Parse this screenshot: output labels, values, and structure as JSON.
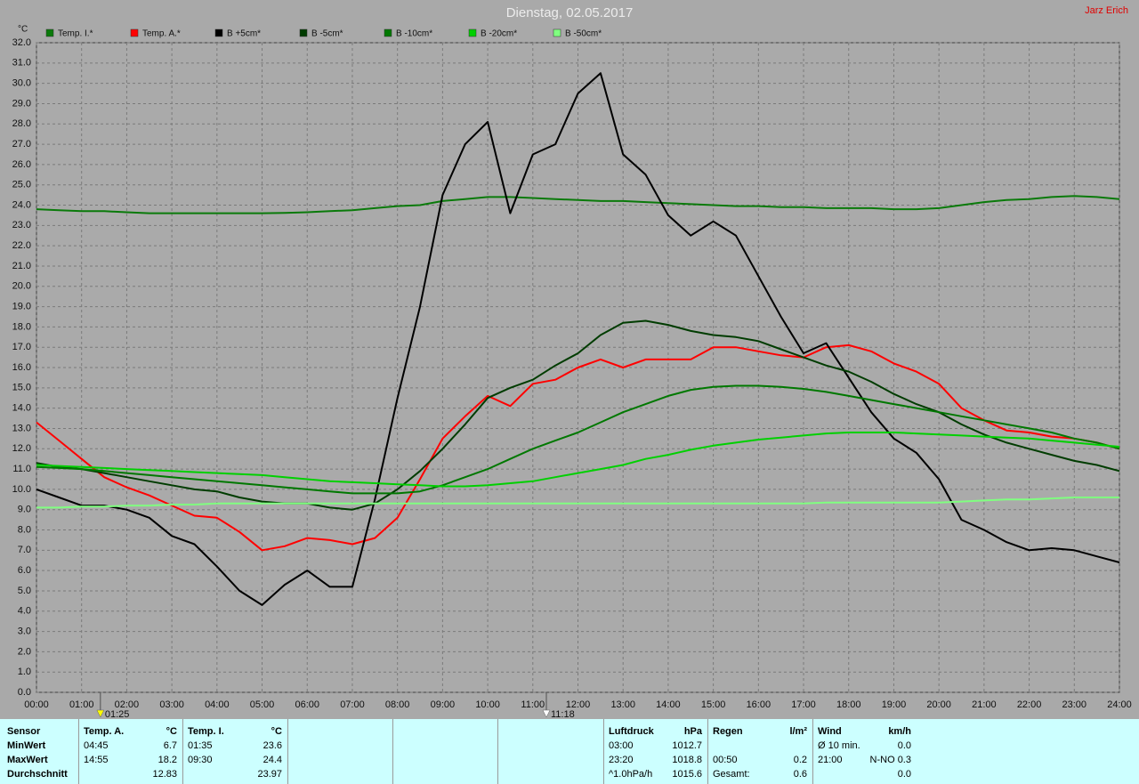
{
  "chart_data": {
    "type": "line",
    "title": "Dienstag, 02.05.2017",
    "author": "Jarz Erich",
    "y_label": "°C",
    "legend": "top",
    "grid": true,
    "x": [
      0,
      0.5,
      1,
      1.5,
      2,
      2.5,
      3,
      3.5,
      4,
      4.5,
      5,
      5.5,
      6,
      6.5,
      7,
      7.5,
      8,
      8.5,
      9,
      9.5,
      10,
      10.5,
      11,
      11.5,
      12,
      12.5,
      13,
      13.5,
      14,
      14.5,
      15,
      15.5,
      16,
      16.5,
      17,
      17.5,
      18,
      18.5,
      19,
      19.5,
      20,
      20.5,
      21,
      21.5,
      22,
      22.5,
      23,
      23.5,
      24
    ],
    "xlim": [
      0,
      24
    ],
    "xticks": [
      {
        "value": 0,
        "label": "00:00"
      },
      {
        "value": 1,
        "label": "01:00"
      },
      {
        "value": 2,
        "label": "02:00"
      },
      {
        "value": 3,
        "label": "03:00"
      },
      {
        "value": 4,
        "label": "04:00"
      },
      {
        "value": 5,
        "label": "05:00"
      },
      {
        "value": 6,
        "label": "06:00"
      },
      {
        "value": 7,
        "label": "07:00"
      },
      {
        "value": 8,
        "label": "08:00"
      },
      {
        "value": 9,
        "label": "09:00"
      },
      {
        "value": 10,
        "label": "10:00"
      },
      {
        "value": 11,
        "label": "11:00"
      },
      {
        "value": 12,
        "label": "12:00"
      },
      {
        "value": 13,
        "label": "13:00"
      },
      {
        "value": 14,
        "label": "14:00"
      },
      {
        "value": 15,
        "label": "15:00"
      },
      {
        "value": 16,
        "label": "16:00"
      },
      {
        "value": 17,
        "label": "17:00"
      },
      {
        "value": 18,
        "label": "18:00"
      },
      {
        "value": 19,
        "label": "19:00"
      },
      {
        "value": 20,
        "label": "20:00"
      },
      {
        "value": 21,
        "label": "21:00"
      },
      {
        "value": 22,
        "label": "22:00"
      },
      {
        "value": 23,
        "label": "23:00"
      },
      {
        "value": 24,
        "label": "24:00"
      }
    ],
    "ylim": [
      0,
      32
    ],
    "yticks": [
      {
        "value": 0,
        "label": "0.0"
      },
      {
        "value": 1,
        "label": "1.0"
      },
      {
        "value": 2,
        "label": "2.0"
      },
      {
        "value": 3,
        "label": "3.0"
      },
      {
        "value": 4,
        "label": "4.0"
      },
      {
        "value": 5,
        "label": "5.0"
      },
      {
        "value": 6,
        "label": "6.0"
      },
      {
        "value": 7,
        "label": "7.0"
      },
      {
        "value": 8,
        "label": "8.0"
      },
      {
        "value": 9,
        "label": "9.0"
      },
      {
        "value": 10,
        "label": "10.0"
      },
      {
        "value": 11,
        "label": "11.0"
      },
      {
        "value": 12,
        "label": "12.0"
      },
      {
        "value": 13,
        "label": "13.0"
      },
      {
        "value": 14,
        "label": "14.0"
      },
      {
        "value": 15,
        "label": "15.0"
      },
      {
        "value": 16,
        "label": "16.0"
      },
      {
        "value": 17,
        "label": "17.0"
      },
      {
        "value": 18,
        "label": "18.0"
      },
      {
        "value": 19,
        "label": "19.0"
      },
      {
        "value": 20,
        "label": "20.0"
      },
      {
        "value": 21,
        "label": "21.0"
      },
      {
        "value": 22,
        "label": "22.0"
      },
      {
        "value": 23,
        "label": "23.0"
      },
      {
        "value": 24,
        "label": "24.0"
      },
      {
        "value": 25,
        "label": "25.0"
      },
      {
        "value": 26,
        "label": "26.0"
      },
      {
        "value": 27,
        "label": "27.0"
      },
      {
        "value": 28,
        "label": "28.0"
      },
      {
        "value": 29,
        "label": "29.0"
      },
      {
        "value": 30,
        "label": "30.0"
      },
      {
        "value": 31,
        "label": "31.0"
      },
      {
        "value": 32,
        "label": "32.0"
      }
    ],
    "markers": [
      {
        "value": 1.4167,
        "label": "01:25",
        "color": "#ffff00"
      },
      {
        "value": 11.3,
        "label": "11:18",
        "color": "#ffffff"
      }
    ],
    "series": [
      {
        "name": "Temp. I.*",
        "color": "#0a7a0a",
        "values": [
          23.8,
          23.75,
          23.7,
          23.7,
          23.65,
          23.6,
          23.6,
          23.6,
          23.6,
          23.6,
          23.6,
          23.62,
          23.65,
          23.7,
          23.75,
          23.85,
          23.95,
          24.0,
          24.2,
          24.3,
          24.4,
          24.4,
          24.35,
          24.3,
          24.25,
          24.2,
          24.2,
          24.15,
          24.1,
          24.05,
          24.0,
          23.95,
          23.95,
          23.9,
          23.9,
          23.85,
          23.85,
          23.85,
          23.8,
          23.8,
          23.85,
          24.0,
          24.15,
          24.25,
          24.3,
          24.4,
          24.45,
          24.4,
          24.3
        ]
      },
      {
        "name": "Temp. A.*",
        "color": "#ff0000",
        "values": [
          13.3,
          12.4,
          11.5,
          10.6,
          10.1,
          9.7,
          9.2,
          8.7,
          8.6,
          7.9,
          7.0,
          7.2,
          7.6,
          7.5,
          7.3,
          7.6,
          8.6,
          10.5,
          12.5,
          13.6,
          14.6,
          14.1,
          15.2,
          15.4,
          16.0,
          16.4,
          16.0,
          16.4,
          16.4,
          16.4,
          17.0,
          17.0,
          16.8,
          16.6,
          16.5,
          17.0,
          17.1,
          16.8,
          16.2,
          15.8,
          15.2,
          14.0,
          13.4,
          12.9,
          12.8,
          12.6,
          12.5,
          12.3,
          12.0
        ]
      },
      {
        "name": "B +5cm*",
        "color": "#000000",
        "values": [
          10.0,
          9.6,
          9.2,
          9.2,
          9.0,
          8.6,
          7.7,
          7.3,
          6.2,
          5.0,
          4.3,
          5.3,
          6.0,
          5.2,
          5.2,
          9.5,
          14.5,
          19.0,
          24.5,
          27.0,
          28.1,
          23.6,
          26.5,
          27.0,
          29.5,
          30.5,
          26.5,
          25.5,
          23.5,
          22.5,
          23.2,
          22.5,
          20.5,
          18.5,
          16.7,
          17.2,
          15.5,
          13.8,
          12.5,
          11.8,
          10.5,
          8.5,
          8.0,
          7.4,
          7.0,
          7.1,
          7.0,
          6.7,
          6.4
        ]
      },
      {
        "name": "B -5cm*",
        "color": "#003c00",
        "values": [
          11.3,
          11.1,
          11.0,
          10.8,
          10.6,
          10.4,
          10.2,
          10.0,
          9.9,
          9.6,
          9.4,
          9.3,
          9.3,
          9.1,
          9.0,
          9.3,
          10.0,
          10.9,
          12.0,
          13.2,
          14.5,
          15.0,
          15.4,
          16.1,
          16.7,
          17.6,
          18.2,
          18.3,
          18.1,
          17.8,
          17.6,
          17.5,
          17.3,
          16.9,
          16.5,
          16.1,
          15.8,
          15.3,
          14.7,
          14.2,
          13.8,
          13.2,
          12.7,
          12.3,
          12.0,
          11.7,
          11.4,
          11.2,
          10.9
        ]
      },
      {
        "name": "B -10cm*",
        "color": "#007800",
        "values": [
          11.1,
          11.05,
          11.0,
          10.9,
          10.8,
          10.7,
          10.6,
          10.5,
          10.4,
          10.3,
          10.2,
          10.1,
          10.0,
          9.9,
          9.8,
          9.8,
          9.8,
          9.9,
          10.2,
          10.6,
          11.0,
          11.5,
          12.0,
          12.4,
          12.8,
          13.3,
          13.8,
          14.2,
          14.6,
          14.9,
          15.05,
          15.1,
          15.1,
          15.05,
          14.95,
          14.8,
          14.6,
          14.4,
          14.2,
          14.0,
          13.8,
          13.6,
          13.4,
          13.2,
          13.0,
          12.8,
          12.5,
          12.3,
          12.0
        ]
      },
      {
        "name": "B -20cm*",
        "color": "#00d000",
        "values": [
          11.2,
          11.15,
          11.1,
          11.05,
          11.0,
          10.95,
          10.9,
          10.85,
          10.8,
          10.75,
          10.7,
          10.6,
          10.5,
          10.4,
          10.35,
          10.3,
          10.25,
          10.2,
          10.15,
          10.15,
          10.2,
          10.3,
          10.4,
          10.6,
          10.8,
          11.0,
          11.2,
          11.5,
          11.7,
          11.95,
          12.15,
          12.3,
          12.45,
          12.55,
          12.65,
          12.75,
          12.8,
          12.8,
          12.8,
          12.75,
          12.7,
          12.65,
          12.6,
          12.55,
          12.5,
          12.4,
          12.3,
          12.2,
          12.1
        ]
      },
      {
        "name": "B -50cm*",
        "color": "#80ff80",
        "values": [
          9.1,
          9.1,
          9.15,
          9.15,
          9.2,
          9.2,
          9.25,
          9.25,
          9.3,
          9.3,
          9.3,
          9.3,
          9.3,
          9.3,
          9.3,
          9.3,
          9.3,
          9.3,
          9.3,
          9.3,
          9.3,
          9.3,
          9.3,
          9.3,
          9.3,
          9.3,
          9.3,
          9.3,
          9.3,
          9.3,
          9.3,
          9.3,
          9.3,
          9.3,
          9.3,
          9.35,
          9.35,
          9.35,
          9.35,
          9.35,
          9.35,
          9.4,
          9.45,
          9.5,
          9.5,
          9.55,
          9.6,
          9.6,
          9.6
        ]
      }
    ]
  },
  "stats_panel": {
    "row_labels": [
      "Sensor",
      "MinWert",
      "MaxWert",
      "Durchschnitt"
    ],
    "columns": [
      {
        "label": "Temp. A.",
        "unit": "°C",
        "rows": [
          {
            "time": "04:45",
            "value": "6.7"
          },
          {
            "time": "14:55",
            "value": "18.2"
          },
          {
            "value": "12.83"
          }
        ]
      },
      {
        "label": "Temp. I.",
        "unit": "°C",
        "rows": [
          {
            "time": "01:35",
            "value": "23.6"
          },
          {
            "time": "09:30",
            "value": "24.4"
          },
          {
            "value": "23.97"
          }
        ]
      },
      {
        "label": "Luftdruck",
        "unit": "hPa",
        "rows": [
          {
            "time": "03:00",
            "value": "1012.7"
          },
          {
            "time": "23:20",
            "value": "1018.8"
          },
          {
            "time": "^1.0hPa/h",
            "value": "1015.6"
          }
        ]
      },
      {
        "label": "Regen",
        "unit": "l/m²",
        "rows": [
          null,
          {
            "time": "00:50",
            "value": "0.2"
          },
          {
            "time": "Gesamt:",
            "value": "0.6"
          }
        ]
      },
      {
        "label": "Wind",
        "unit": "km/h",
        "rows": [
          {
            "time": "Ø 10 min.",
            "value": "0.0"
          },
          {
            "time": "21:00",
            "value": "N-NO 0.3"
          },
          {
            "value": "0.0"
          }
        ]
      }
    ]
  }
}
